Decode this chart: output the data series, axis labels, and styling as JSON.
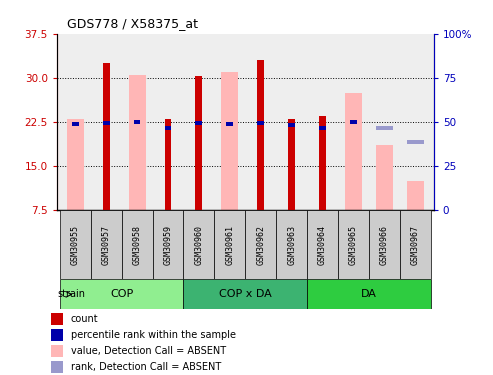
{
  "title": "GDS778 / X58375_at",
  "samples": [
    "GSM30955",
    "GSM30957",
    "GSM30958",
    "GSM30959",
    "GSM30960",
    "GSM30961",
    "GSM30962",
    "GSM30963",
    "GSM30964",
    "GSM30965",
    "GSM30966",
    "GSM30967"
  ],
  "groups": [
    {
      "label": "COP",
      "start": 0,
      "end": 4,
      "color": "#90EE90"
    },
    {
      "label": "COP x DA",
      "start": 4,
      "end": 8,
      "color": "#3CB371"
    },
    {
      "label": "DA",
      "start": 8,
      "end": 12,
      "color": "#2ECC40"
    }
  ],
  "ylim_left": [
    7.5,
    37.5
  ],
  "ylim_right": [
    0,
    100
  ],
  "yticks_left": [
    7.5,
    15.0,
    22.5,
    30.0,
    37.5
  ],
  "yticks_right": [
    0,
    25,
    50,
    75,
    100
  ],
  "red_bars": [
    null,
    32.5,
    null,
    23.0,
    30.3,
    null,
    33.0,
    23.0,
    23.5,
    null,
    null,
    null
  ],
  "pink_bars": [
    23.0,
    null,
    30.5,
    null,
    null,
    31.0,
    null,
    null,
    null,
    27.5,
    18.5,
    12.5
  ],
  "blue_markers": [
    22.2,
    22.3,
    22.5,
    21.5,
    22.3,
    22.2,
    22.3,
    21.9,
    21.5,
    22.5,
    null,
    null
  ],
  "light_blue_markers": [
    null,
    null,
    null,
    null,
    null,
    null,
    null,
    null,
    null,
    null,
    21.5,
    19.0
  ],
  "red_color": "#CC0000",
  "pink_color": "#FFB6B6",
  "blue_color": "#0000AA",
  "light_blue_color": "#9999CC",
  "left_axis_color": "#CC0000",
  "right_axis_color": "#0000BB",
  "plot_bg": "#eeeeee",
  "sample_box_color": "#cccccc",
  "grid_dotted_levels": [
    15.0,
    22.5,
    30.0
  ],
  "legend_items": [
    {
      "color": "#CC0000",
      "label": "count"
    },
    {
      "color": "#0000AA",
      "label": "percentile rank within the sample"
    },
    {
      "color": "#FFB6B6",
      "label": "value, Detection Call = ABSENT"
    },
    {
      "color": "#9999CC",
      "label": "rank, Detection Call = ABSENT"
    }
  ]
}
